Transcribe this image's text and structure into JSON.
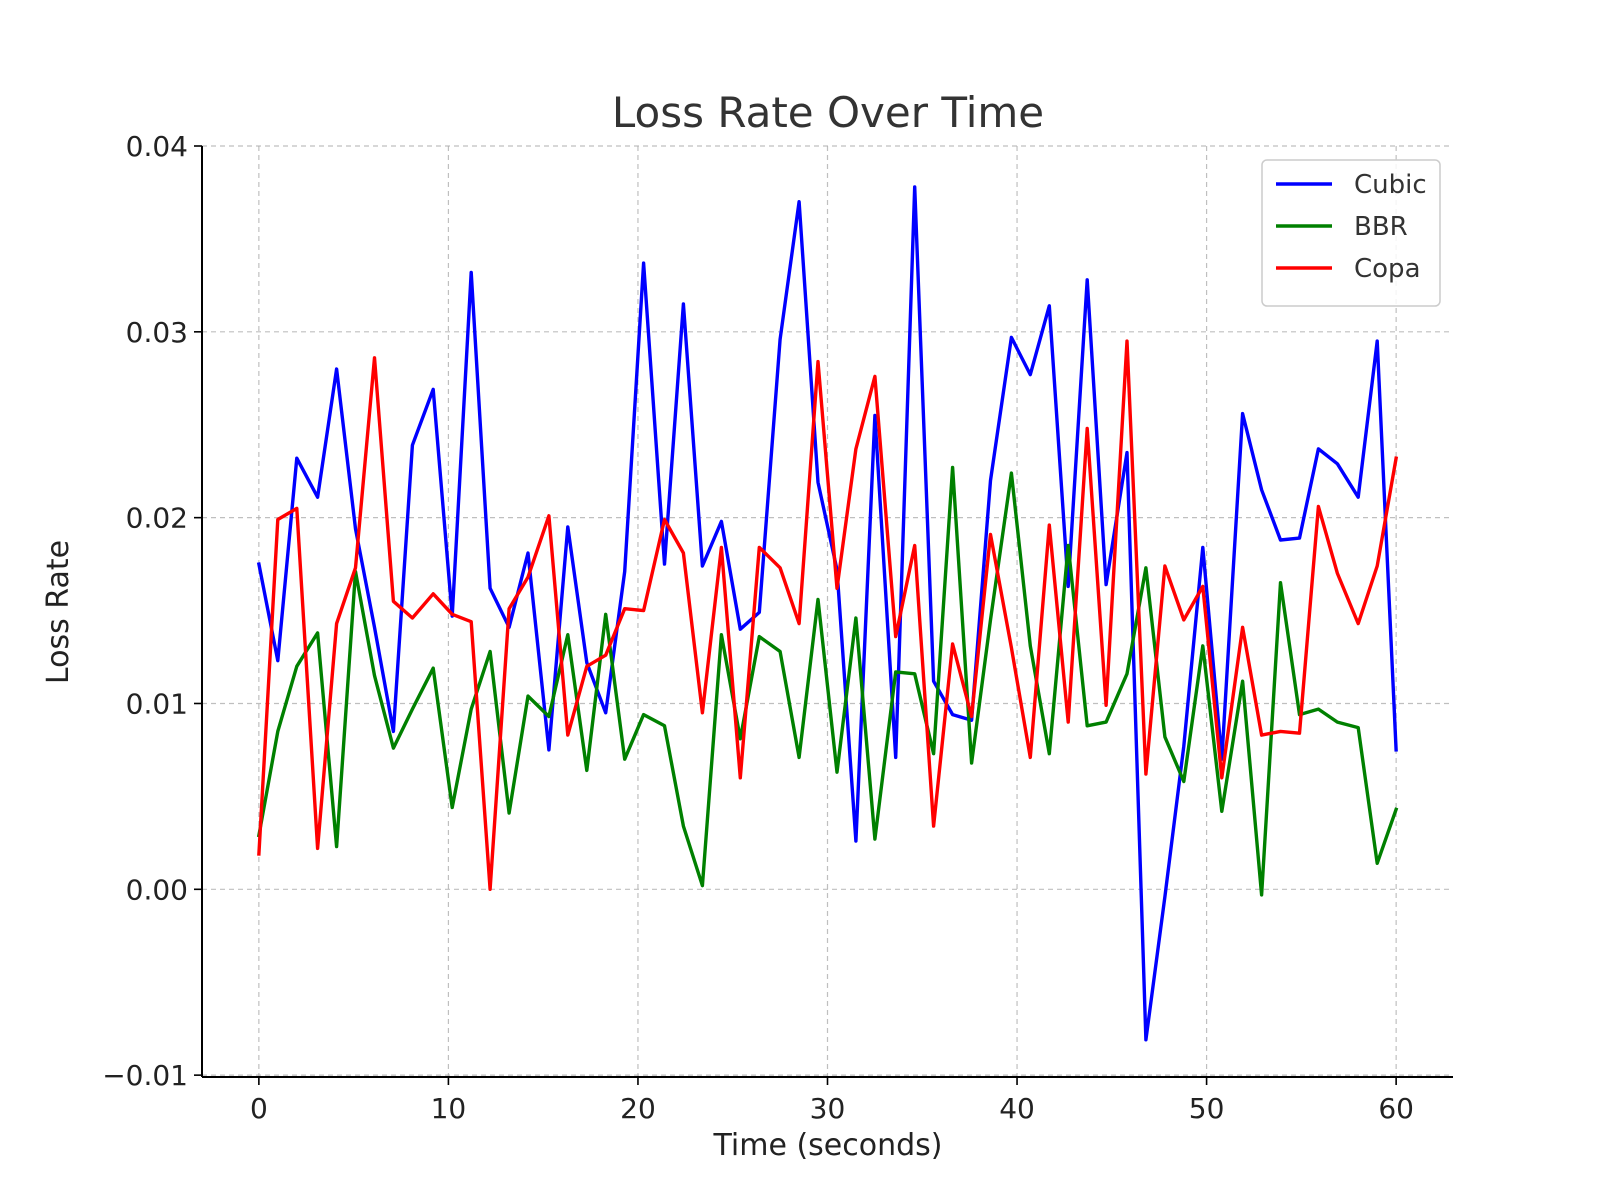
{
  "chart_data": {
    "type": "line",
    "title": "Loss Rate Over Time",
    "xlabel": "Time (seconds)",
    "ylabel": "Loss Rate",
    "xlim": [
      -3,
      63
    ],
    "ylim": [
      -0.0101,
      0.04
    ],
    "x_ticks": [
      0,
      10,
      20,
      30,
      40,
      50,
      60
    ],
    "x_tick_labels": [
      "0",
      "10",
      "20",
      "30",
      "40",
      "50",
      "60"
    ],
    "y_ticks": [
      -0.01,
      0.0,
      0.01,
      0.02,
      0.03,
      0.04
    ],
    "y_tick_labels": [
      "−0.01",
      "0.00",
      "0.01",
      "0.02",
      "0.03",
      "0.04"
    ],
    "grid": true,
    "legend_position": "top-right",
    "x": [
      0.0,
      1.0,
      2.0,
      3.1,
      4.1,
      5.1,
      6.1,
      7.1,
      8.1,
      9.2,
      10.2,
      11.2,
      12.2,
      13.2,
      14.2,
      15.3,
      16.3,
      17.3,
      18.3,
      19.3,
      20.3,
      21.4,
      22.4,
      23.4,
      24.4,
      25.4,
      26.4,
      27.5,
      28.5,
      29.5,
      30.5,
      31.5,
      32.5,
      33.6,
      34.6,
      35.6,
      36.6,
      37.6,
      38.6,
      39.7,
      40.7,
      41.7,
      42.7,
      43.7,
      44.7,
      45.8,
      46.8,
      47.8,
      48.8,
      49.8,
      50.8,
      51.9,
      52.9,
      53.9,
      54.9,
      55.9,
      56.9,
      58.0,
      59.0,
      60.0
    ],
    "series": [
      {
        "name": "Cubic",
        "color": "#0000ff",
        "values": [
          0.0175,
          0.0123,
          0.0232,
          0.0211,
          0.028,
          0.0194,
          0.0141,
          0.0085,
          0.0239,
          0.0269,
          0.0147,
          0.0332,
          0.0162,
          0.0141,
          0.0181,
          0.0075,
          0.0195,
          0.0122,
          0.0095,
          0.0171,
          0.0337,
          0.0175,
          0.0315,
          0.0174,
          0.0198,
          0.014,
          0.0149,
          0.0296,
          0.037,
          0.0219,
          0.0172,
          0.0026,
          0.0255,
          0.0071,
          0.0378,
          0.0112,
          0.0094,
          0.0091,
          0.022,
          0.0297,
          0.0277,
          0.0314,
          0.0163,
          0.0328,
          0.0164,
          0.0235,
          -0.0081,
          -0.0004,
          0.0077,
          0.0184,
          0.007,
          0.0256,
          0.0215,
          0.0188,
          0.0189,
          0.0237,
          0.0229,
          0.0211,
          0.0295,
          0.0075
        ]
      },
      {
        "name": "BBR",
        "color": "#008000",
        "values": [
          0.0029,
          0.0085,
          0.012,
          0.0138,
          0.0023,
          0.0171,
          0.0115,
          0.0076,
          0.0097,
          0.0119,
          0.0044,
          0.0097,
          0.0128,
          0.0041,
          0.0104,
          0.0093,
          0.0137,
          0.0064,
          0.0148,
          0.007,
          0.0094,
          0.0088,
          0.0034,
          0.0002,
          0.0137,
          0.0081,
          0.0136,
          0.0128,
          0.0071,
          0.0156,
          0.0063,
          0.0146,
          0.0027,
          0.0117,
          0.0116,
          0.0073,
          0.0227,
          0.0068,
          0.0145,
          0.0224,
          0.0131,
          0.0073,
          0.0185,
          0.0088,
          0.009,
          0.0116,
          0.0173,
          0.0082,
          0.0058,
          0.0131,
          0.0042,
          0.0112,
          -0.0003,
          0.0165,
          0.0094,
          0.0097,
          0.009,
          0.0087,
          0.0014,
          0.0043
        ]
      },
      {
        "name": "Copa",
        "color": "#ff0000",
        "values": [
          0.0019,
          0.0199,
          0.0205,
          0.0022,
          0.0143,
          0.0173,
          0.0286,
          0.0155,
          0.0146,
          0.0159,
          0.0148,
          0.0144,
          0.0,
          0.0151,
          0.0168,
          0.0201,
          0.0083,
          0.012,
          0.0126,
          0.0151,
          0.015,
          0.0199,
          0.0181,
          0.0095,
          0.0184,
          0.006,
          0.0184,
          0.0173,
          0.0143,
          0.0284,
          0.0162,
          0.0237,
          0.0276,
          0.0136,
          0.0185,
          0.0034,
          0.0132,
          0.0093,
          0.0191,
          0.013,
          0.0071,
          0.0196,
          0.009,
          0.0248,
          0.0099,
          0.0295,
          0.0062,
          0.0174,
          0.0145,
          0.0163,
          0.006,
          0.0141,
          0.0083,
          0.0085,
          0.0084,
          0.0206,
          0.017,
          0.0143,
          0.0174,
          0.0232
        ]
      }
    ]
  }
}
